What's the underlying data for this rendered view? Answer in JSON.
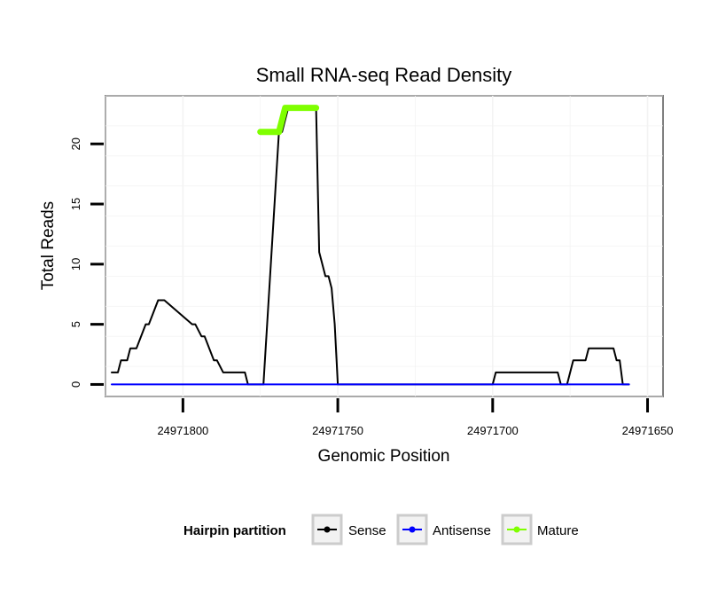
{
  "chart_data": {
    "type": "line",
    "title": "Small RNA-seq Read Density",
    "xlabel": "Genomic Position",
    "ylabel": "Total Reads",
    "xlim": [
      24971825,
      24971645
    ],
    "ylim": [
      -1,
      24
    ],
    "x_reversed": true,
    "xticks": [
      24971800,
      24971750,
      24971700,
      24971650
    ],
    "xtick_labels": [
      "24971800",
      "24971750",
      "24971700",
      "24971650"
    ],
    "yticks": [
      0,
      5,
      10,
      15,
      20
    ],
    "ytick_labels": [
      "0",
      "5",
      "10",
      "15",
      "20"
    ],
    "grid": true,
    "legend": {
      "position": "bottom",
      "title": "Hairpin partition",
      "entries": [
        "Sense",
        "Antisense",
        "Mature"
      ]
    },
    "series": [
      {
        "name": "Sense",
        "color": "#000000",
        "x": [
          24971823,
          24971821,
          24971820,
          24971818,
          24971817,
          24971815,
          24971812,
          24971811,
          24971808,
          24971806,
          24971797,
          24971796,
          24971794,
          24971793,
          24971790,
          24971789,
          24971787,
          24971786,
          24971780,
          24971779,
          24971775,
          24971774,
          24971769,
          24971768,
          24971767,
          24971766,
          24971762,
          24971761,
          24971757,
          24971756,
          24971755,
          24971754,
          24971753,
          24971752,
          24971751,
          24971750,
          24971749,
          24971700,
          24971699,
          24971679,
          24971678,
          24971677,
          24971676,
          24971675,
          24971674,
          24971670,
          24971669,
          24971661,
          24971660,
          24971659,
          24971658,
          24971656
        ],
        "y": [
          1,
          1,
          2,
          2,
          3,
          3,
          5,
          5,
          7,
          7,
          5,
          5,
          4,
          4,
          2,
          2,
          1,
          1,
          1,
          0,
          0,
          0,
          21,
          21,
          22,
          23,
          23,
          23,
          23,
          11,
          10,
          9,
          9,
          8,
          5,
          0,
          0,
          0,
          1,
          1,
          0,
          0,
          0,
          1,
          2,
          2,
          3,
          3,
          2,
          2,
          0,
          0
        ]
      },
      {
        "name": "Antisense",
        "color": "#0000ff",
        "x": [
          24971823,
          24971656
        ],
        "y": [
          0,
          0
        ]
      },
      {
        "name": "Mature",
        "color": "#7fff00",
        "x": [
          24971775,
          24971769,
          24971768,
          24971767,
          24971766,
          24971757
        ],
        "y": [
          21,
          21,
          22,
          23,
          23,
          23
        ]
      }
    ]
  }
}
